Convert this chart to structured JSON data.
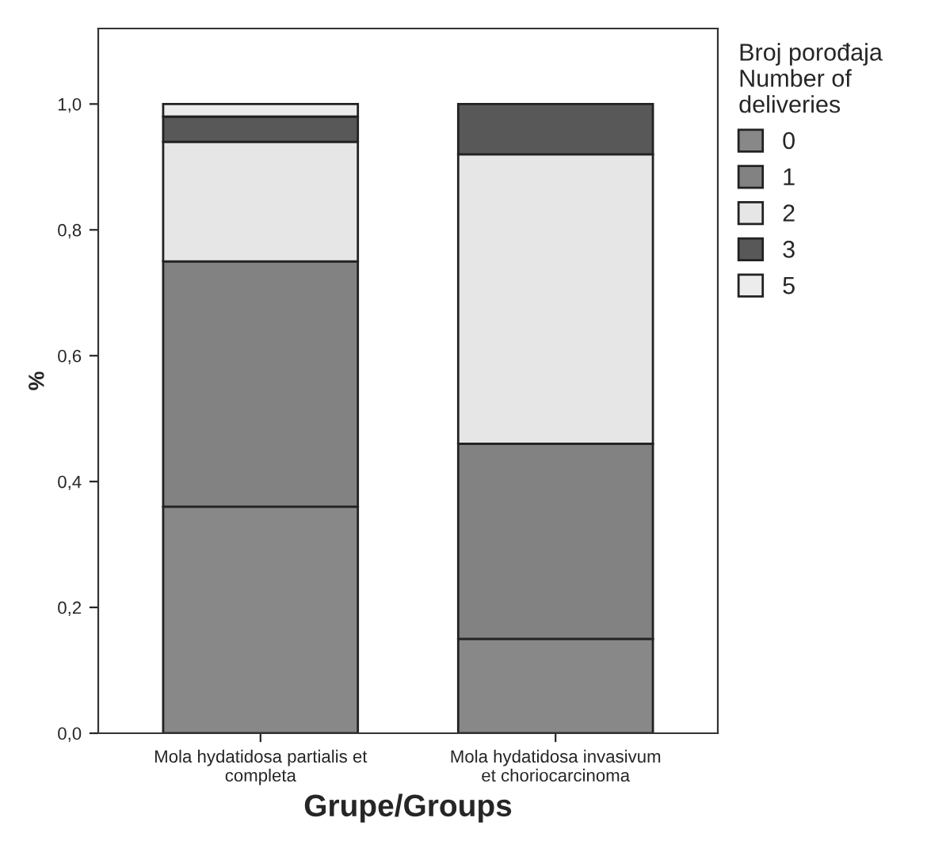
{
  "chart_data": {
    "type": "bar",
    "stacked": true,
    "xlabel": "Grupe/Groups",
    "ylabel": "%",
    "legend_title": "Broj porođaja\nNumber of\ndeliveries",
    "categories": [
      "Mola hydatidosa partialis et\ncompleta",
      "Mola hydatidosa invasivum\net choriocarcinoma"
    ],
    "series": [
      {
        "name": "0",
        "color": "#888888",
        "values": [
          0.36,
          0.15
        ]
      },
      {
        "name": "1",
        "color": "#828282",
        "values": [
          0.39,
          0.31
        ]
      },
      {
        "name": "2",
        "color": "#e6e6e6",
        "values": [
          0.19,
          0.46
        ]
      },
      {
        "name": "3",
        "color": "#585858",
        "values": [
          0.04,
          0.08
        ]
      },
      {
        "name": "5",
        "color": "#ececec",
        "values": [
          0.02,
          null
        ]
      }
    ],
    "ylim": [
      0,
      1.12
    ],
    "yticks": [
      {
        "value": 0,
        "label": "0,0"
      },
      {
        "value": 0.2,
        "label": "0,2"
      },
      {
        "value": 0.4,
        "label": "0,4"
      },
      {
        "value": 0.6,
        "label": "0,6"
      },
      {
        "value": 0.8,
        "label": "0,8"
      },
      {
        "value": 1.0,
        "label": "1,0"
      }
    ],
    "grid": false,
    "legend": "right"
  }
}
